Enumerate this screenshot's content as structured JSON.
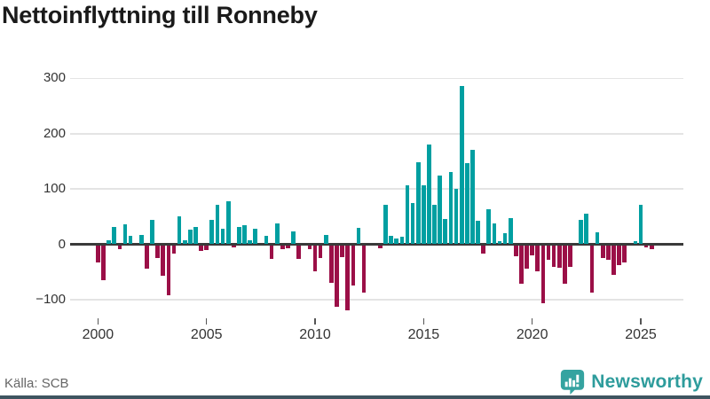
{
  "title": "Nettoinflyttning till Ronneby",
  "source": "Källa: SCB",
  "logo": {
    "text": "Newsworthy",
    "icon": "bar-chart-speech-bubble-icon"
  },
  "colors": {
    "positive": "#009fa1",
    "negative": "#9b0f47",
    "grid": "#e4e4e4",
    "zero_line": "#3a3a3a",
    "title_text": "#1a1a1a",
    "axis_text": "#333333",
    "source_text": "#666666",
    "logo": "#2e9c9c",
    "bottom_strip": "#3f5560"
  },
  "chart_data": {
    "type": "bar",
    "title": "Nettoinflyttning till Ronneby",
    "frequency": "quarterly",
    "x_start": "2000Q1",
    "x_end": "2025Q3",
    "xlabel": "",
    "ylabel": "",
    "y_ticks": [
      300,
      200,
      100,
      0,
      -100
    ],
    "ylim": [
      -125,
      310
    ],
    "x_tick_labels": [
      "2000",
      "2005",
      "2010",
      "2015",
      "2020",
      "2025"
    ],
    "grid": "horizontal",
    "legend": "none",
    "values": [
      -32,
      -64,
      8,
      32,
      -8,
      36,
      16,
      0,
      17,
      -43,
      44,
      -24,
      -56,
      -90,
      -16,
      51,
      7,
      27,
      31,
      -11,
      -9,
      44,
      72,
      28,
      77,
      -4,
      31,
      34,
      7,
      28,
      0,
      16,
      -25,
      37,
      -7,
      -5,
      24,
      -25,
      0,
      -8,
      -47,
      -24,
      17,
      -68,
      -112,
      -22,
      -118,
      -73,
      29,
      -86,
      0,
      0,
      -5,
      71,
      15,
      11,
      13,
      107,
      75,
      148,
      107,
      180,
      71,
      124,
      46,
      131,
      101,
      286,
      146,
      171,
      43,
      -16,
      64,
      37,
      5,
      20,
      48,
      -20,
      -70,
      -42,
      -19,
      -48,
      -105,
      -27,
      -39,
      -41,
      -69,
      -39,
      0,
      44,
      56,
      -85,
      21,
      -23,
      -27,
      -53,
      -36,
      -32,
      0,
      6,
      72,
      -4,
      -7
    ]
  }
}
